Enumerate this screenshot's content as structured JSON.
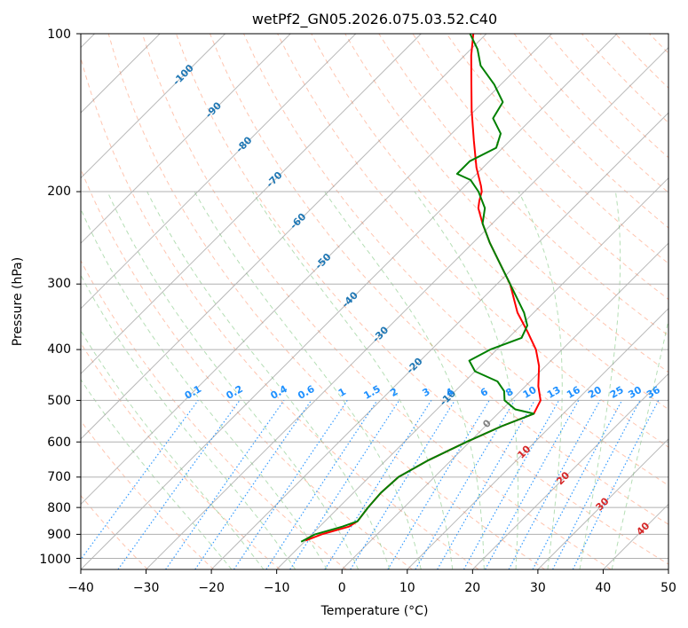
{
  "chart_data": {
    "type": "line",
    "title": "wetPf2_GN05.2026.075.03.52.C40",
    "xlabel": "Temperature (°C)",
    "ylabel": "Pressure (hPa)",
    "xlim": [
      -40,
      50
    ],
    "ylim": [
      1050,
      100
    ],
    "y_scale": "log",
    "grid": true,
    "x_ticks": [
      "−40",
      "−30",
      "−20",
      "−10",
      "0",
      "10",
      "20",
      "30",
      "40",
      "50"
    ],
    "y_ticks": [
      "100",
      "200",
      "300",
      "400",
      "500",
      "600",
      "700",
      "800",
      "900",
      "1000"
    ],
    "colors": {
      "temperature": "#ff0000",
      "dewpoint": "#008000",
      "dry_adiabat": "#ff7f50",
      "moist_adiabat": "#2ca02c",
      "mixing_ratio": "#1e90ff",
      "isotherm": "#808080",
      "isotherm_label_blue": "#1f77b4",
      "isotherm_label_red": "#d62728",
      "isotherm_label_gray": "#808080"
    },
    "series": [
      {
        "key": "temperature",
        "values": [
          {
            "p": 925,
            "t": -10.0
          },
          {
            "p": 900,
            "t": -8.5
          },
          {
            "p": 870,
            "t": -5.5
          },
          {
            "p": 850,
            "t": -5.0
          },
          {
            "p": 800,
            "t": -5.5
          },
          {
            "p": 750,
            "t": -5.8
          },
          {
            "p": 700,
            "t": -5.5
          },
          {
            "p": 650,
            "t": -3.5
          },
          {
            "p": 600,
            "t": -0.5
          },
          {
            "p": 560,
            "t": 2.5
          },
          {
            "p": 530,
            "t": 5.5
          },
          {
            "p": 500,
            "t": 4.5
          },
          {
            "p": 470,
            "t": 2.0
          },
          {
            "p": 430,
            "t": -1.0
          },
          {
            "p": 400,
            "t": -4.0
          },
          {
            "p": 370,
            "t": -8.0
          },
          {
            "p": 340,
            "t": -12.5
          },
          {
            "p": 300,
            "t": -18.0
          },
          {
            "p": 270,
            "t": -23.5
          },
          {
            "p": 250,
            "t": -27.5
          },
          {
            "p": 230,
            "t": -31.5
          },
          {
            "p": 215,
            "t": -34.5
          },
          {
            "p": 208,
            "t": -35.5
          },
          {
            "p": 200,
            "t": -36.5
          },
          {
            "p": 195,
            "t": -37.5
          },
          {
            "p": 180,
            "t": -41.0
          },
          {
            "p": 160,
            "t": -45.5
          },
          {
            "p": 140,
            "t": -50.5
          },
          {
            "p": 125,
            "t": -54.5
          },
          {
            "p": 110,
            "t": -59.0
          },
          {
            "p": 100,
            "t": -62.0
          }
        ]
      },
      {
        "key": "dewpoint",
        "values": [
          {
            "p": 930,
            "t": -10.5
          },
          {
            "p": 900,
            "t": -9.5
          },
          {
            "p": 870,
            "t": -6.5
          },
          {
            "p": 850,
            "t": -5.0
          },
          {
            "p": 800,
            "t": -5.5
          },
          {
            "p": 750,
            "t": -5.8
          },
          {
            "p": 700,
            "t": -5.5
          },
          {
            "p": 650,
            "t": -3.5
          },
          {
            "p": 600,
            "t": -0.5
          },
          {
            "p": 560,
            "t": 2.5
          },
          {
            "p": 530,
            "t": 5.5
          },
          {
            "p": 520,
            "t": 2.0
          },
          {
            "p": 500,
            "t": -1.0
          },
          {
            "p": 480,
            "t": -2.5
          },
          {
            "p": 460,
            "t": -5.0
          },
          {
            "p": 440,
            "t": -10.0
          },
          {
            "p": 420,
            "t": -12.5
          },
          {
            "p": 400,
            "t": -11.0
          },
          {
            "p": 380,
            "t": -8.0
          },
          {
            "p": 360,
            "t": -9.0
          },
          {
            "p": 340,
            "t": -11.5
          },
          {
            "p": 300,
            "t": -18.0
          },
          {
            "p": 270,
            "t": -23.5
          },
          {
            "p": 250,
            "t": -27.5
          },
          {
            "p": 230,
            "t": -31.5
          },
          {
            "p": 215,
            "t": -33.5
          },
          {
            "p": 200,
            "t": -37.0
          },
          {
            "p": 190,
            "t": -40.0
          },
          {
            "p": 185,
            "t": -43.0
          },
          {
            "p": 175,
            "t": -43.0
          },
          {
            "p": 165,
            "t": -41.0
          },
          {
            "p": 155,
            "t": -42.5
          },
          {
            "p": 145,
            "t": -46.0
          },
          {
            "p": 135,
            "t": -47.0
          },
          {
            "p": 125,
            "t": -51.0
          },
          {
            "p": 115,
            "t": -56.0
          },
          {
            "p": 107,
            "t": -59.0
          },
          {
            "p": 100,
            "t": -62.5
          }
        ]
      }
    ],
    "isotherm_labels": [
      {
        "text": "-100",
        "t": -100,
        "p": 120,
        "color": "blue"
      },
      {
        "text": "-90",
        "t": -90,
        "p": 140,
        "color": "blue"
      },
      {
        "text": "-80",
        "t": -80,
        "p": 163,
        "color": "blue"
      },
      {
        "text": "-70",
        "t": -70,
        "p": 190,
        "color": "blue"
      },
      {
        "text": "-60",
        "t": -60,
        "p": 228,
        "color": "blue"
      },
      {
        "text": "-50",
        "t": -50,
        "p": 272,
        "color": "blue"
      },
      {
        "text": "-40",
        "t": -40,
        "p": 322,
        "color": "blue"
      },
      {
        "text": "-30",
        "t": -30,
        "p": 375,
        "color": "blue"
      },
      {
        "text": "-20",
        "t": -20,
        "p": 430,
        "color": "blue"
      },
      {
        "text": "-10",
        "t": -10,
        "p": 495,
        "color": "blue"
      },
      {
        "text": "0",
        "t": 0,
        "p": 555,
        "color": "gray"
      },
      {
        "text": "10",
        "t": 10,
        "p": 628,
        "color": "red"
      },
      {
        "text": "20",
        "t": 20,
        "p": 705,
        "color": "red"
      },
      {
        "text": "30",
        "t": 30,
        "p": 790,
        "color": "red"
      },
      {
        "text": "40",
        "t": 40,
        "p": 880,
        "color": "red"
      }
    ],
    "mixing_ratio_labels": [
      "0.1",
      "0.2",
      "0.4",
      "0.6",
      "1",
      "1.5",
      "2",
      "3",
      "4",
      "6",
      "8",
      "10",
      "13",
      "16",
      "20",
      "25",
      "30",
      "36"
    ]
  }
}
